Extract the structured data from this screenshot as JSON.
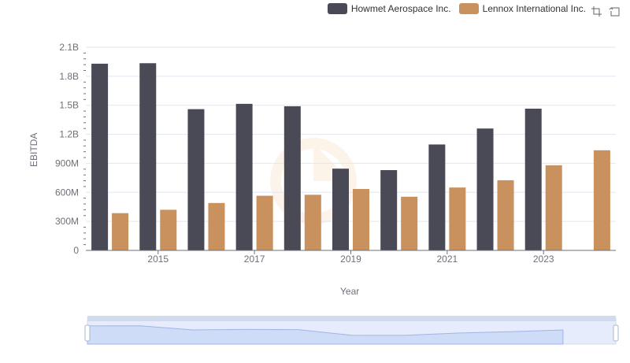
{
  "legend": {
    "items": [
      {
        "label": "Howmet Aerospace Inc.",
        "color": "#4a4a57"
      },
      {
        "label": "Lennox International Inc.",
        "color": "#c8915e"
      }
    ]
  },
  "toolbox": {
    "icons": [
      "zoom-icon",
      "restore-icon"
    ]
  },
  "chart_data": {
    "type": "bar",
    "xlabel": "Year",
    "ylabel": "EBITDA",
    "categories": [
      "2014",
      "2015",
      "2016",
      "2017",
      "2018",
      "2019",
      "2020",
      "2021",
      "2022",
      "2023",
      "2024"
    ],
    "x_tick_labels": [
      "2015",
      "2017",
      "2019",
      "2021",
      "2023"
    ],
    "y_tick_labels": [
      "0",
      "300M",
      "600M",
      "900M",
      "1.2B",
      "1.5B",
      "1.8B",
      "2.1B"
    ],
    "ylim": [
      0,
      2100000000
    ],
    "grid": true,
    "legend_position": "top-right",
    "series": [
      {
        "name": "Howmet Aerospace Inc.",
        "color": "#4a4a57",
        "values": [
          1930000000,
          1935000000,
          1460000000,
          1515000000,
          1490000000,
          845000000,
          830000000,
          1095000000,
          1260000000,
          1465000000,
          null
        ]
      },
      {
        "name": "Lennox International Inc.",
        "color": "#c8915e",
        "values": [
          385000000,
          420000000,
          490000000,
          565000000,
          575000000,
          635000000,
          555000000,
          650000000,
          725000000,
          880000000,
          1035000000
        ]
      }
    ]
  }
}
